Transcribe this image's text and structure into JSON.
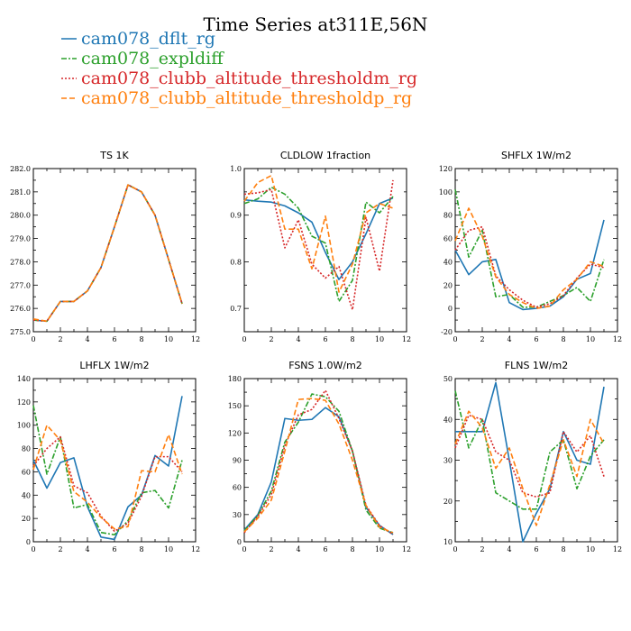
{
  "figure": {
    "title": "Time Series at311E,56N",
    "legend": [
      {
        "label": "cam078_dflt_rg",
        "color": "#1f77b4",
        "dash": ""
      },
      {
        "label": "cam078_expldiff",
        "color": "#2ca02c",
        "dash": "6,2,2,2"
      },
      {
        "label": "cam078_clubb_altitude_thresholdm_rg",
        "color": "#d62728",
        "dash": "2,2"
      },
      {
        "label": "cam078_clubb_altitude_thresholdp_rg",
        "color": "#ff7f0e",
        "dash": "6,3"
      }
    ]
  },
  "chart_data": [
    {
      "type": "line",
      "title": "TS   1K",
      "x": [
        0,
        1,
        2,
        3,
        4,
        5,
        6,
        7,
        8,
        9,
        10,
        11
      ],
      "xlim": [
        0,
        12
      ],
      "xticks": [
        0,
        2,
        4,
        6,
        8,
        10,
        12
      ],
      "ylim": [
        275,
        282
      ],
      "yticks": [
        275,
        276,
        277,
        278,
        279,
        280,
        281,
        282
      ],
      "yticklabels": [
        "275.0",
        "276.0",
        "277.0",
        "278.0",
        "279.0",
        "280.0",
        "281.0",
        "282.0"
      ],
      "series": [
        {
          "name": "cam078_dflt_rg",
          "values": [
            275.5,
            275.45,
            276.3,
            276.3,
            276.75,
            277.75,
            279.5,
            281.3,
            281.0,
            280.0,
            278.1,
            276.2
          ]
        },
        {
          "name": "cam078_expldiff",
          "values": [
            275.5,
            275.45,
            276.3,
            276.3,
            276.75,
            277.75,
            279.5,
            281.3,
            281.0,
            280.0,
            278.1,
            276.2
          ]
        },
        {
          "name": "cam078_clubb_altitude_thresholdm_rg",
          "values": [
            275.5,
            275.45,
            276.3,
            276.3,
            276.75,
            277.75,
            279.5,
            281.3,
            281.0,
            280.0,
            278.1,
            276.2
          ]
        },
        {
          "name": "cam078_clubb_altitude_thresholdp_rg",
          "values": [
            275.55,
            275.45,
            276.3,
            276.3,
            276.75,
            277.75,
            279.5,
            281.3,
            281.0,
            280.0,
            278.1,
            276.2
          ]
        }
      ]
    },
    {
      "type": "line",
      "title": "CLDLOW   1fraction",
      "x": [
        0,
        1,
        2,
        3,
        4,
        5,
        6,
        7,
        8,
        9,
        10,
        11
      ],
      "xlim": [
        0,
        12
      ],
      "xticks": [
        0,
        2,
        4,
        6,
        8,
        10,
        12
      ],
      "ylim": [
        0.65,
        1.0
      ],
      "yticks": [
        0.7,
        0.8,
        0.9,
        1.0
      ],
      "yticklabels": [
        "0.7",
        "0.8",
        "0.9",
        "1.0"
      ],
      "series": [
        {
          "name": "cam078_dflt_rg",
          "values": [
            0.933,
            0.93,
            0.928,
            0.92,
            0.905,
            0.885,
            0.82,
            0.762,
            0.8,
            0.86,
            0.925,
            0.937
          ]
        },
        {
          "name": "cam078_expldiff",
          "values": [
            0.925,
            0.935,
            0.96,
            0.945,
            0.915,
            0.855,
            0.84,
            0.715,
            0.76,
            0.928,
            0.905,
            0.94
          ]
        },
        {
          "name": "cam078_clubb_altitude_thresholdm_rg",
          "values": [
            0.945,
            0.948,
            0.955,
            0.83,
            0.89,
            0.795,
            0.765,
            0.79,
            0.697,
            0.895,
            0.78,
            0.975
          ]
        },
        {
          "name": "cam078_clubb_altitude_thresholdp_rg",
          "values": [
            0.93,
            0.97,
            0.985,
            0.87,
            0.87,
            0.785,
            0.898,
            0.735,
            0.795,
            0.905,
            0.925,
            0.915
          ]
        }
      ]
    },
    {
      "type": "line",
      "title": "SHFLX   1W/m2",
      "x": [
        0,
        1,
        2,
        3,
        4,
        5,
        6,
        7,
        8,
        9,
        10,
        11
      ],
      "xlim": [
        0,
        12
      ],
      "xticks": [
        0,
        2,
        4,
        6,
        8,
        10,
        12
      ],
      "ylim": [
        -20,
        120
      ],
      "yticks": [
        -20,
        0,
        20,
        40,
        60,
        80,
        100,
        120
      ],
      "yticklabels": [
        "-20",
        "0",
        "20",
        "40",
        "60",
        "80",
        "100",
        "120"
      ],
      "series": [
        {
          "name": "cam078_dflt_rg",
          "values": [
            50,
            29,
            40,
            42,
            5,
            -1,
            0,
            2,
            10,
            25,
            30,
            76
          ]
        },
        {
          "name": "cam078_expldiff",
          "values": [
            102,
            44,
            67,
            10,
            12,
            1,
            1,
            6,
            11,
            18,
            6,
            42
          ]
        },
        {
          "name": "cam078_clubb_altitude_thresholdm_rg",
          "values": [
            50,
            67,
            70,
            28,
            16,
            7,
            1,
            4,
            11,
            26,
            38,
            35
          ]
        },
        {
          "name": "cam078_clubb_altitude_thresholdp_rg",
          "values": [
            58,
            86,
            62,
            27,
            12,
            5,
            0,
            2,
            16,
            25,
            40,
            36
          ]
        }
      ]
    },
    {
      "type": "line",
      "title": "LHFLX   1W/m2",
      "x": [
        0,
        1,
        2,
        3,
        4,
        5,
        6,
        7,
        8,
        9,
        10,
        11
      ],
      "xlim": [
        0,
        12
      ],
      "xticks": [
        0,
        2,
        4,
        6,
        8,
        10,
        12
      ],
      "ylim": [
        0,
        140
      ],
      "yticks": [
        0,
        20,
        40,
        60,
        80,
        100,
        120,
        140
      ],
      "yticklabels": [
        "0",
        "20",
        "40",
        "60",
        "80",
        "100",
        "120",
        "140"
      ],
      "series": [
        {
          "name": "cam078_dflt_rg",
          "values": [
            70,
            46,
            68,
            72,
            30,
            4,
            2,
            30,
            40,
            74,
            65,
            125
          ]
        },
        {
          "name": "cam078_expldiff",
          "values": [
            117,
            58,
            90,
            29,
            32,
            8,
            6,
            18,
            42,
            44,
            29,
            70
          ]
        },
        {
          "name": "cam078_clubb_altitude_thresholdm_rg",
          "values": [
            65,
            80,
            90,
            48,
            42,
            22,
            9,
            16,
            39,
            73,
            73,
            60
          ]
        },
        {
          "name": "cam078_clubb_altitude_thresholdp_rg",
          "values": [
            62,
            100,
            87,
            43,
            34,
            21,
            11,
            13,
            61,
            60,
            92,
            58
          ]
        }
      ]
    },
    {
      "type": "line",
      "title": "FSNS   1.0W/m2",
      "x": [
        0,
        1,
        2,
        3,
        4,
        5,
        6,
        7,
        8,
        9,
        10,
        11
      ],
      "xlim": [
        0,
        12
      ],
      "xticks": [
        0,
        2,
        4,
        6,
        8,
        10,
        12
      ],
      "ylim": [
        0,
        180
      ],
      "yticks": [
        0,
        30,
        60,
        90,
        120,
        150,
        180
      ],
      "yticklabels": [
        "0",
        "30",
        "60",
        "90",
        "120",
        "150",
        "180"
      ],
      "series": [
        {
          "name": "cam078_dflt_rg",
          "values": [
            13,
            30,
            66,
            136,
            134,
            135,
            148,
            138,
            100,
            38,
            18,
            8
          ]
        },
        {
          "name": "cam078_expldiff",
          "values": [
            12,
            29,
            56,
            110,
            132,
            163,
            160,
            144,
            100,
            35,
            15,
            10
          ]
        },
        {
          "name": "cam078_clubb_altitude_thresholdm_rg",
          "values": [
            10,
            28,
            52,
            106,
            140,
            146,
            167,
            136,
            100,
            40,
            18,
            8
          ]
        },
        {
          "name": "cam078_clubb_altitude_thresholdp_rg",
          "values": [
            11,
            26,
            46,
            100,
            157,
            158,
            156,
            130,
            90,
            40,
            16,
            10
          ]
        }
      ]
    },
    {
      "type": "line",
      "title": "FLNS   1W/m2",
      "x": [
        0,
        1,
        2,
        3,
        4,
        5,
        6,
        7,
        8,
        9,
        10,
        11
      ],
      "xlim": [
        0,
        12
      ],
      "xticks": [
        0,
        2,
        4,
        6,
        8,
        10,
        12
      ],
      "ylim": [
        10,
        50
      ],
      "yticks": [
        10,
        20,
        30,
        40,
        50
      ],
      "yticklabels": [
        "10",
        "20",
        "30",
        "40",
        "50"
      ],
      "series": [
        {
          "name": "cam078_dflt_rg",
          "values": [
            37,
            37,
            37,
            49,
            30,
            10,
            17,
            23,
            37,
            30,
            29,
            48
          ]
        },
        {
          "name": "cam078_expldiff",
          "values": [
            47,
            33,
            40,
            22,
            20,
            18,
            18,
            32,
            35,
            23,
            31,
            35
          ]
        },
        {
          "name": "cam078_clubb_altitude_thresholdm_rg",
          "values": [
            33,
            41,
            40,
            32,
            30,
            22,
            21,
            22,
            37,
            32,
            36,
            26
          ]
        },
        {
          "name": "cam078_clubb_altitude_thresholdp_rg",
          "values": [
            34,
            42,
            38,
            28,
            33,
            23,
            14,
            24,
            35,
            26,
            40,
            34
          ]
        }
      ]
    }
  ]
}
